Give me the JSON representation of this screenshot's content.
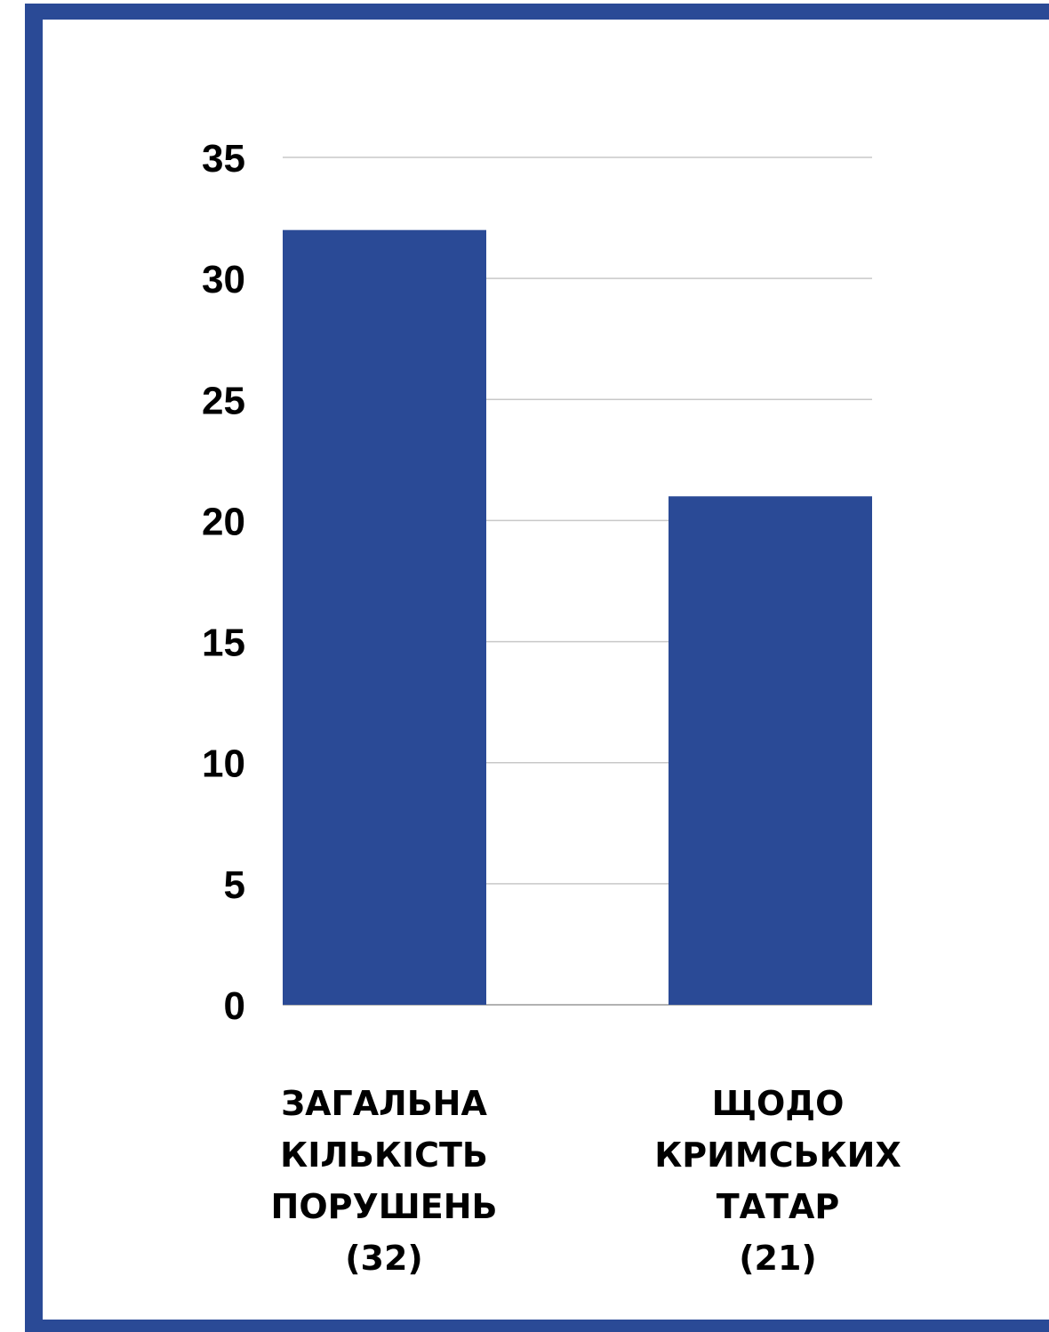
{
  "chart_data": {
    "type": "bar",
    "categories": [
      [
        "ЗАГАЛЬНА",
        "КІЛЬКІСТЬ",
        "ПОРУШЕНЬ",
        "(32)"
      ],
      [
        "ЩОДО",
        "КРИМСЬКИХ",
        "ТАТАР",
        "(21)"
      ]
    ],
    "values": [
      32,
      21
    ],
    "ylim": [
      0,
      35
    ],
    "yticks": [
      "0",
      "5",
      "10",
      "15",
      "20",
      "25",
      "30",
      "35"
    ],
    "grid": true,
    "bar_color": "#2a4a96",
    "frame_color": "#2a4a96"
  }
}
